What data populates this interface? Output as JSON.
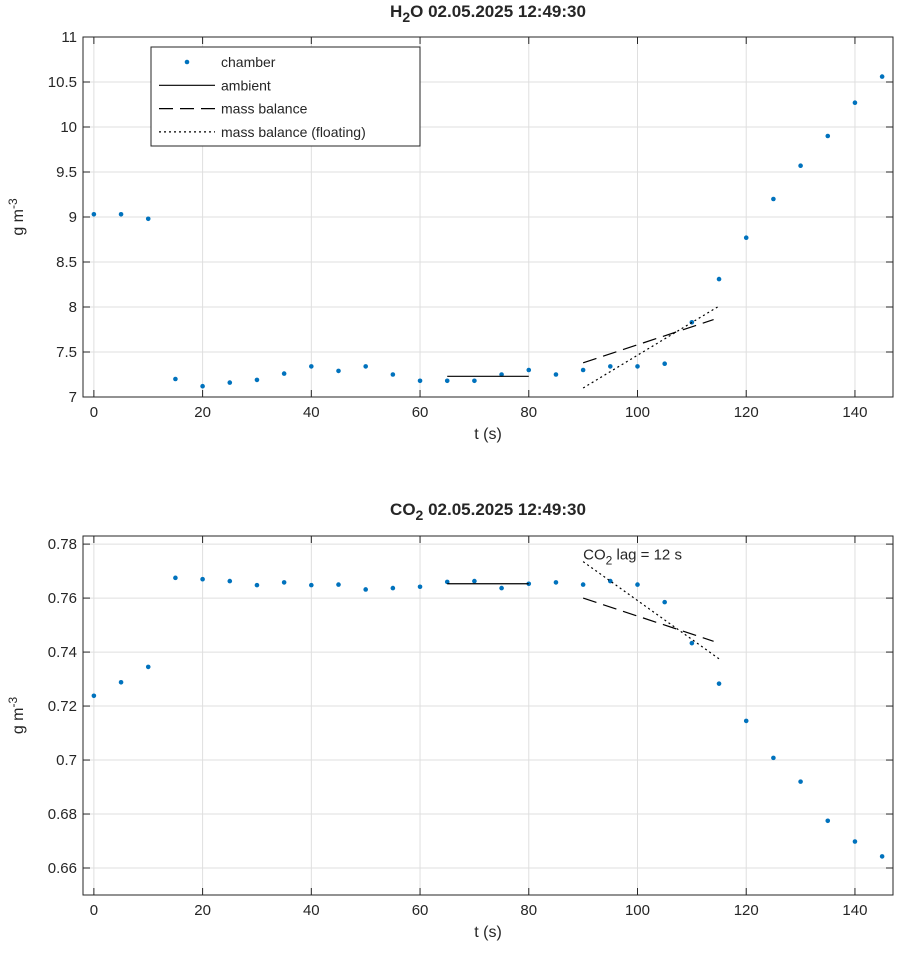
{
  "chart_data": [
    {
      "type": "scatter",
      "title": "02.05.2025 12:49:30",
      "title_species": {
        "base": "H",
        "sub": "2",
        "rest": "O"
      },
      "xlabel": "t (s)",
      "ylabel": {
        "base": "g m",
        "sup": "-3"
      },
      "xlim": [
        -2,
        147
      ],
      "ylim": [
        7,
        11
      ],
      "xticks": [
        0,
        20,
        40,
        60,
        80,
        100,
        120,
        140
      ],
      "yticks": [
        7,
        7.5,
        8,
        8.5,
        9,
        9.5,
        10,
        10.5,
        11
      ],
      "grid": true,
      "legend": {
        "position": "top-left",
        "entries": [
          {
            "label": "chamber",
            "style": "dots"
          },
          {
            "label": "ambient",
            "style": "solid"
          },
          {
            "label": "mass balance",
            "style": "dashed"
          },
          {
            "label": "mass balance (floating)",
            "style": "dotted"
          }
        ]
      },
      "series": [
        {
          "name": "chamber",
          "style": "dots",
          "color": "#0072BD",
          "x": [
            0,
            5,
            10,
            15,
            20,
            25,
            30,
            35,
            40,
            45,
            50,
            55,
            60,
            65,
            70,
            75,
            80,
            85,
            90,
            95,
            100,
            105,
            110,
            115,
            120,
            125,
            130,
            135,
            140,
            145
          ],
          "y": [
            9.03,
            9.03,
            8.98,
            7.2,
            7.12,
            7.16,
            7.19,
            7.26,
            7.34,
            7.29,
            7.34,
            7.25,
            7.18,
            7.18,
            7.18,
            7.25,
            7.3,
            7.25,
            7.3,
            7.34,
            7.34,
            7.37,
            7.83,
            8.31,
            8.77,
            9.2,
            9.57,
            9.9,
            10.27,
            10.56
          ]
        },
        {
          "name": "ambient",
          "style": "solid",
          "color": "#000000",
          "x": [
            65,
            80
          ],
          "y": [
            7.23,
            7.23
          ]
        },
        {
          "name": "mass balance",
          "style": "dashed",
          "color": "#000000",
          "x": [
            90,
            114
          ],
          "y": [
            7.38,
            7.86
          ]
        },
        {
          "name": "mass balance (floating)",
          "style": "dotted",
          "color": "#000000",
          "x": [
            90,
            115
          ],
          "y": [
            7.1,
            8.01
          ]
        }
      ]
    },
    {
      "type": "scatter",
      "title": "02.05.2025 12:49:30",
      "title_species": {
        "base": "CO",
        "sub": "2",
        "rest": ""
      },
      "xlabel": "t (s)",
      "ylabel": {
        "base": "g m",
        "sup": "-3"
      },
      "xlim": [
        -2,
        147
      ],
      "ylim": [
        0.65,
        0.783
      ],
      "xticks": [
        0,
        20,
        40,
        60,
        80,
        100,
        120,
        140
      ],
      "yticks": [
        0.66,
        0.68,
        0.7,
        0.72,
        0.74,
        0.76,
        0.78
      ],
      "grid": true,
      "annotations": [
        {
          "text_base": "CO",
          "text_sub": "2",
          "text_rest": " lag = 12 s",
          "x": 90,
          "y": 0.7735
        }
      ],
      "series": [
        {
          "name": "chamber",
          "style": "dots",
          "color": "#0072BD",
          "x": [
            0,
            5,
            10,
            15,
            20,
            25,
            30,
            35,
            40,
            45,
            50,
            55,
            60,
            65,
            70,
            75,
            80,
            85,
            90,
            95,
            100,
            105,
            110,
            115,
            120,
            125,
            130,
            135,
            140,
            145
          ],
          "y": [
            0.7238,
            0.7288,
            0.7345,
            0.7675,
            0.767,
            0.7663,
            0.7648,
            0.7658,
            0.7648,
            0.765,
            0.7632,
            0.7637,
            0.7642,
            0.766,
            0.7663,
            0.7637,
            0.7653,
            0.7658,
            0.765,
            0.7663,
            0.765,
            0.7585,
            0.7433,
            0.7283,
            0.7145,
            0.7008,
            0.692,
            0.6775,
            0.6698,
            0.6643
          ]
        },
        {
          "name": "ambient",
          "style": "solid",
          "color": "#000000",
          "x": [
            65,
            80
          ],
          "y": [
            0.7653,
            0.7653
          ]
        },
        {
          "name": "mass balance",
          "style": "dashed",
          "color": "#000000",
          "x": [
            90,
            114
          ],
          "y": [
            0.76,
            0.744
          ]
        },
        {
          "name": "mass balance (floating)",
          "style": "dotted",
          "color": "#000000",
          "x": [
            90,
            115
          ],
          "y": [
            0.7735,
            0.7375
          ]
        }
      ]
    }
  ]
}
